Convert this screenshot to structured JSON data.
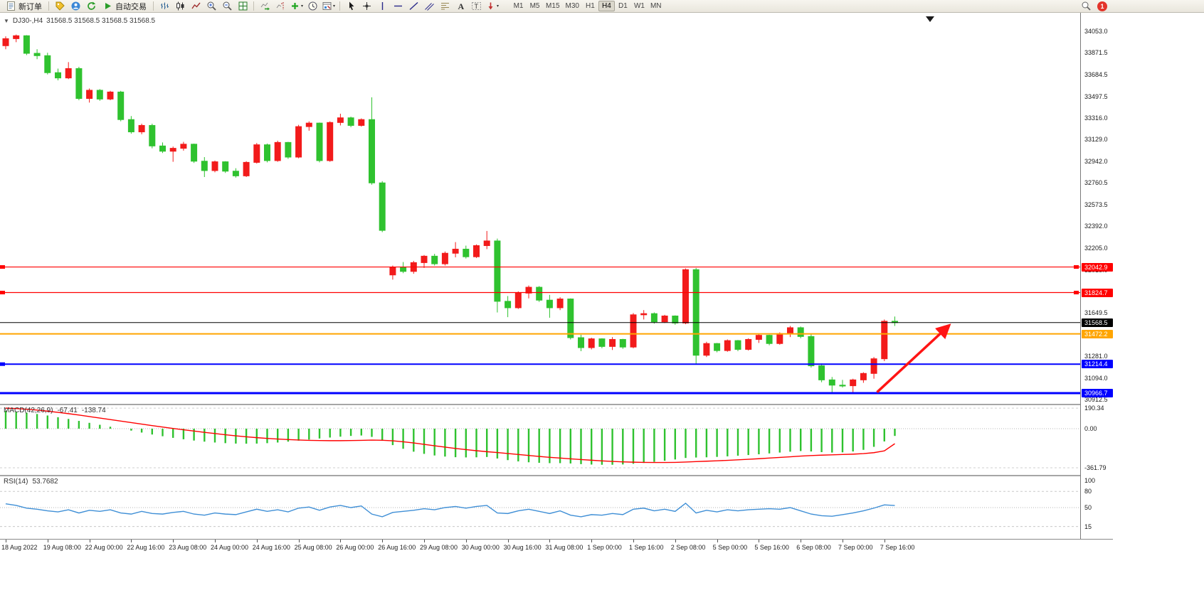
{
  "toolbar": {
    "new_order": "新订单",
    "auto_trading": "自动交易",
    "timeframes": [
      "M1",
      "M5",
      "M15",
      "M30",
      "H1",
      "H4",
      "D1",
      "W1",
      "MN"
    ],
    "active_timeframe": "H4",
    "notification_count": "1"
  },
  "chart": {
    "symbol_title": "DJ30-,H4",
    "ohlc": "31568.5 31568.5 31568.5 31568.5",
    "price_axis_labels": [
      "34053.0",
      "33871.5",
      "33684.5",
      "33497.5",
      "33316.0",
      "33129.0",
      "32942.0",
      "32760.5",
      "32573.5",
      "32392.0",
      "32205.0",
      "32018.0",
      "31831.0",
      "31649.5",
      "31462.5",
      "31281.0",
      "31094.0",
      "30912.5"
    ],
    "levels": [
      {
        "name": "resistance-line-1",
        "price": 32042.9,
        "label": "32042.9",
        "color": "#ff0000",
        "width": 1.2,
        "handles": 2
      },
      {
        "name": "resistance-line-2",
        "price": 31824.7,
        "label": "31824.7",
        "color": "#ff0000",
        "width": 1.2,
        "handles": 2
      },
      {
        "name": "current-price-line",
        "price": 31568.5,
        "label": "31568.5",
        "color": "#000000",
        "width": 1,
        "handles": 0
      },
      {
        "name": "pivot-line",
        "price": 31472.2,
        "label": "31472.2",
        "color": "#ffa500",
        "width": 2,
        "handles": 0
      },
      {
        "name": "support-line-1",
        "price": 31214.4,
        "label": "31214.4",
        "color": "#0000ff",
        "width": 2,
        "handles": 1
      },
      {
        "name": "support-line-2",
        "price": 30966.7,
        "label": "30966.7",
        "color": "#0000ff",
        "width": 3,
        "handles": 0
      }
    ]
  },
  "chart_data": {
    "type": "candlestick",
    "symbol": "DJ30-",
    "timeframe": "H4",
    "up_color": "#f21b1b",
    "down_color": "#2fc22f",
    "candles": [
      [
        33930,
        34010,
        33900,
        33990
      ],
      [
        33990,
        34025,
        33960,
        34015
      ],
      [
        34015,
        34020,
        33850,
        33865
      ],
      [
        33865,
        33900,
        33815,
        33845
      ],
      [
        33845,
        33870,
        33685,
        33700
      ],
      [
        33700,
        33735,
        33635,
        33655
      ],
      [
        33655,
        33790,
        33645,
        33735
      ],
      [
        33735,
        33750,
        33465,
        33480
      ],
      [
        33480,
        33565,
        33445,
        33550
      ],
      [
        33550,
        33560,
        33460,
        33475
      ],
      [
        33475,
        33545,
        33465,
        33535
      ],
      [
        33535,
        33545,
        33285,
        33300
      ],
      [
        33300,
        33330,
        33180,
        33195
      ],
      [
        33195,
        33265,
        33175,
        33250
      ],
      [
        33250,
        33265,
        33055,
        33075
      ],
      [
        33075,
        33105,
        33015,
        33030
      ],
      [
        33030,
        33070,
        32940,
        33055
      ],
      [
        33055,
        33110,
        33035,
        33090
      ],
      [
        33090,
        33095,
        32930,
        32945
      ],
      [
        32945,
        32980,
        32810,
        32865
      ],
      [
        32865,
        32950,
        32850,
        32940
      ],
      [
        32940,
        32945,
        32845,
        32860
      ],
      [
        32860,
        32885,
        32805,
        32820
      ],
      [
        32820,
        32945,
        32810,
        32935
      ],
      [
        32935,
        33100,
        32925,
        33085
      ],
      [
        33085,
        33095,
        32935,
        32950
      ],
      [
        32950,
        33120,
        32940,
        33105
      ],
      [
        33105,
        33110,
        32965,
        32980
      ],
      [
        32980,
        33255,
        32970,
        33240
      ],
      [
        33240,
        33285,
        33205,
        33270
      ],
      [
        33270,
        33275,
        32935,
        32950
      ],
      [
        32950,
        33285,
        32940,
        33275
      ],
      [
        33275,
        33350,
        33250,
        33315
      ],
      [
        33315,
        33325,
        33235,
        33250
      ],
      [
        33250,
        33310,
        33240,
        33300
      ],
      [
        33300,
        33490,
        32745,
        32760
      ],
      [
        32760,
        32775,
        32340,
        32355
      ],
      [
        31975,
        32055,
        31935,
        32040
      ],
      [
        32040,
        32085,
        31990,
        32005
      ],
      [
        32005,
        32095,
        31985,
        32080
      ],
      [
        32080,
        32145,
        32035,
        32135
      ],
      [
        32135,
        32155,
        32055,
        32070
      ],
      [
        32070,
        32175,
        32055,
        32160
      ],
      [
        32160,
        32255,
        32125,
        32195
      ],
      [
        32195,
        32225,
        32115,
        32130
      ],
      [
        32130,
        32235,
        32120,
        32225
      ],
      [
        32225,
        32350,
        32195,
        32265
      ],
      [
        32265,
        32285,
        31655,
        31750
      ],
      [
        31750,
        31795,
        31615,
        31695
      ],
      [
        31695,
        31835,
        31685,
        31820
      ],
      [
        31820,
        31885,
        31775,
        31870
      ],
      [
        31870,
        31880,
        31745,
        31760
      ],
      [
        31760,
        31805,
        31610,
        31695
      ],
      [
        31695,
        31785,
        31675,
        31770
      ],
      [
        31770,
        31775,
        31425,
        31440
      ],
      [
        31440,
        31465,
        31325,
        31355
      ],
      [
        31355,
        31440,
        31340,
        31430
      ],
      [
        31430,
        31435,
        31350,
        31365
      ],
      [
        31365,
        31445,
        31335,
        31425
      ],
      [
        31425,
        31430,
        31345,
        31360
      ],
      [
        31360,
        31650,
        31350,
        31635
      ],
      [
        31635,
        31675,
        31595,
        31645
      ],
      [
        31645,
        31655,
        31560,
        31575
      ],
      [
        31575,
        31635,
        31565,
        31625
      ],
      [
        31625,
        31630,
        31550,
        31565
      ],
      [
        31565,
        32030,
        31555,
        32020
      ],
      [
        32020,
        32035,
        31210,
        31290
      ],
      [
        31290,
        31405,
        31275,
        31390
      ],
      [
        31390,
        31395,
        31315,
        31330
      ],
      [
        31330,
        31425,
        31320,
        31415
      ],
      [
        31415,
        31420,
        31325,
        31340
      ],
      [
        31340,
        31435,
        31330,
        31425
      ],
      [
        31425,
        31470,
        31395,
        31460
      ],
      [
        31460,
        31465,
        31375,
        31390
      ],
      [
        31390,
        31485,
        31380,
        31475
      ],
      [
        31475,
        31540,
        31445,
        31525
      ],
      [
        31525,
        31535,
        31435,
        31450
      ],
      [
        31450,
        31475,
        31185,
        31200
      ],
      [
        31200,
        31220,
        31060,
        31080
      ],
      [
        31080,
        31105,
        30970,
        31035
      ],
      [
        31035,
        31080,
        31015,
        31030
      ],
      [
        31030,
        31090,
        30960,
        31080
      ],
      [
        31080,
        31145,
        31055,
        31135
      ],
      [
        31135,
        31275,
        31090,
        31260
      ],
      [
        31260,
        31595,
        31240,
        31580
      ],
      [
        31580,
        31620,
        31540,
        31568.5
      ]
    ],
    "time_labels": [
      "18 Aug 2022",
      "19 Aug 08:00",
      "22 Aug 00:00",
      "22 Aug 16:00",
      "23 Aug 08:00",
      "24 Aug 00:00",
      "24 Aug 16:00",
      "25 Aug 08:00",
      "26 Aug 00:00",
      "26 Aug 16:00",
      "29 Aug 08:00",
      "30 Aug 00:00",
      "30 Aug 16:00",
      "31 Aug 08:00",
      "1 Sep 00:00",
      "1 Sep 16:00",
      "2 Sep 08:00",
      "5 Sep 00:00",
      "5 Sep 16:00",
      "6 Sep 08:00",
      "7 Sep 00:00",
      "7 Sep 16:00"
    ],
    "label_every_n_candles": 4,
    "macd": {
      "label": "MACD(42,26,9)",
      "value_main": "-67.41",
      "value_signal": "-138.74",
      "axis": [
        "190.34",
        "0.00",
        "-361.79"
      ],
      "histogram_color": "#2fc22f",
      "signal_color": "#ff0000",
      "histogram": [
        165,
        158,
        148,
        136,
        122,
        106,
        90,
        72,
        54,
        36,
        18,
        0,
        -18,
        -36,
        -54,
        -70,
        -85,
        -98,
        -110,
        -120,
        -128,
        -134,
        -138,
        -139,
        -138,
        -134,
        -128,
        -120,
        -111,
        -101,
        -91,
        -82,
        -74,
        -67,
        -63,
        -76,
        -112,
        -152,
        -186,
        -213,
        -233,
        -248,
        -258,
        -264,
        -266,
        -265,
        -262,
        -276,
        -291,
        -303,
        -311,
        -316,
        -319,
        -319,
        -322,
        -328,
        -332,
        -334,
        -334,
        -331,
        -325,
        -317,
        -307,
        -297,
        -285,
        -271,
        -267,
        -265,
        -261,
        -256,
        -250,
        -244,
        -237,
        -229,
        -221,
        -213,
        -207,
        -211,
        -217,
        -221,
        -219,
        -211,
        -196,
        -168,
        -118,
        -67
      ],
      "signal": [
        190,
        186,
        180,
        172,
        162,
        151,
        139,
        126,
        112,
        98,
        84,
        70,
        56,
        42,
        28,
        15,
        2,
        -10,
        -22,
        -34,
        -45,
        -56,
        -66,
        -75,
        -83,
        -90,
        -96,
        -101,
        -105,
        -108,
        -110,
        -111,
        -111,
        -110,
        -108,
        -106,
        -107,
        -112,
        -121,
        -132,
        -145,
        -158,
        -171,
        -183,
        -194,
        -204,
        -213,
        -221,
        -230,
        -239,
        -248,
        -257,
        -265,
        -272,
        -279,
        -286,
        -292,
        -298,
        -303,
        -307,
        -310,
        -312,
        -313,
        -313,
        -312,
        -309,
        -305,
        -301,
        -297,
        -293,
        -288,
        -283,
        -278,
        -272,
        -266,
        -260,
        -254,
        -249,
        -245,
        -242,
        -239,
        -236,
        -231,
        -222,
        -205,
        -139
      ]
    },
    "rsi": {
      "label": "RSI(14)",
      "value": "53.7682",
      "axis": [
        "100",
        "80",
        "50",
        "15"
      ],
      "line_color": "#3f8fd6",
      "values": [
        57,
        54,
        49,
        47,
        44,
        42,
        46,
        40,
        45,
        43,
        46,
        40,
        38,
        43,
        39,
        38,
        41,
        43,
        38,
        36,
        40,
        38,
        37,
        42,
        47,
        43,
        46,
        42,
        49,
        51,
        45,
        51,
        54,
        50,
        53,
        38,
        33,
        41,
        43,
        45,
        48,
        46,
        50,
        52,
        49,
        52,
        54,
        40,
        39,
        44,
        47,
        43,
        39,
        44,
        36,
        33,
        37,
        36,
        39,
        37,
        47,
        49,
        44,
        47,
        43,
        58,
        40,
        45,
        42,
        46,
        44,
        46,
        47,
        48,
        47,
        50,
        44,
        38,
        35,
        34,
        37,
        40,
        44,
        49,
        55,
        53.8
      ]
    },
    "annotation_arrow": {
      "from_bar": 83.3,
      "from_price": 30975,
      "to_bar": 90.2,
      "to_price": 31545,
      "color": "#ff1414"
    }
  }
}
